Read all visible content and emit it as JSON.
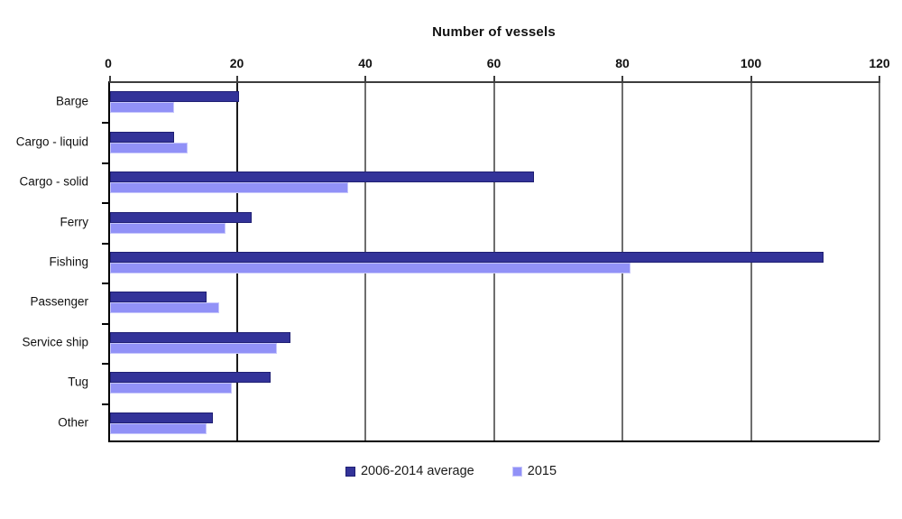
{
  "chart_data": {
    "type": "bar",
    "orientation": "horizontal",
    "title": "Number of vessels",
    "xlabel": "",
    "ylabel": "",
    "xlim": [
      0,
      120
    ],
    "xticks": [
      0,
      20,
      40,
      60,
      80,
      100,
      120
    ],
    "grid": "vertical",
    "axis_position": "top",
    "legend_position": "bottom",
    "categories": [
      "Barge",
      "Cargo - liquid",
      "Cargo - solid",
      "Ferry",
      "Fishing",
      "Passenger",
      "Service ship",
      "Tug",
      "Other"
    ],
    "series": [
      {
        "name": "2006-2014 average",
        "color": "#333399",
        "border_color": "#1F1F73",
        "values": [
          20,
          10,
          66,
          22,
          111,
          15,
          28,
          25,
          16
        ]
      },
      {
        "name": "2015",
        "color": "#9191F7",
        "border_color": "#C6C6FB",
        "values": [
          10,
          12,
          37,
          18,
          81,
          17,
          26,
          19,
          15
        ]
      }
    ],
    "colors": {
      "axis_line": "#000000",
      "top_axis_line": "#3d3d3d",
      "gridline_major": "#1a1a1a",
      "gridline_minor": "#6e6e6e",
      "background": "#ffffff",
      "text": "#111111"
    }
  }
}
